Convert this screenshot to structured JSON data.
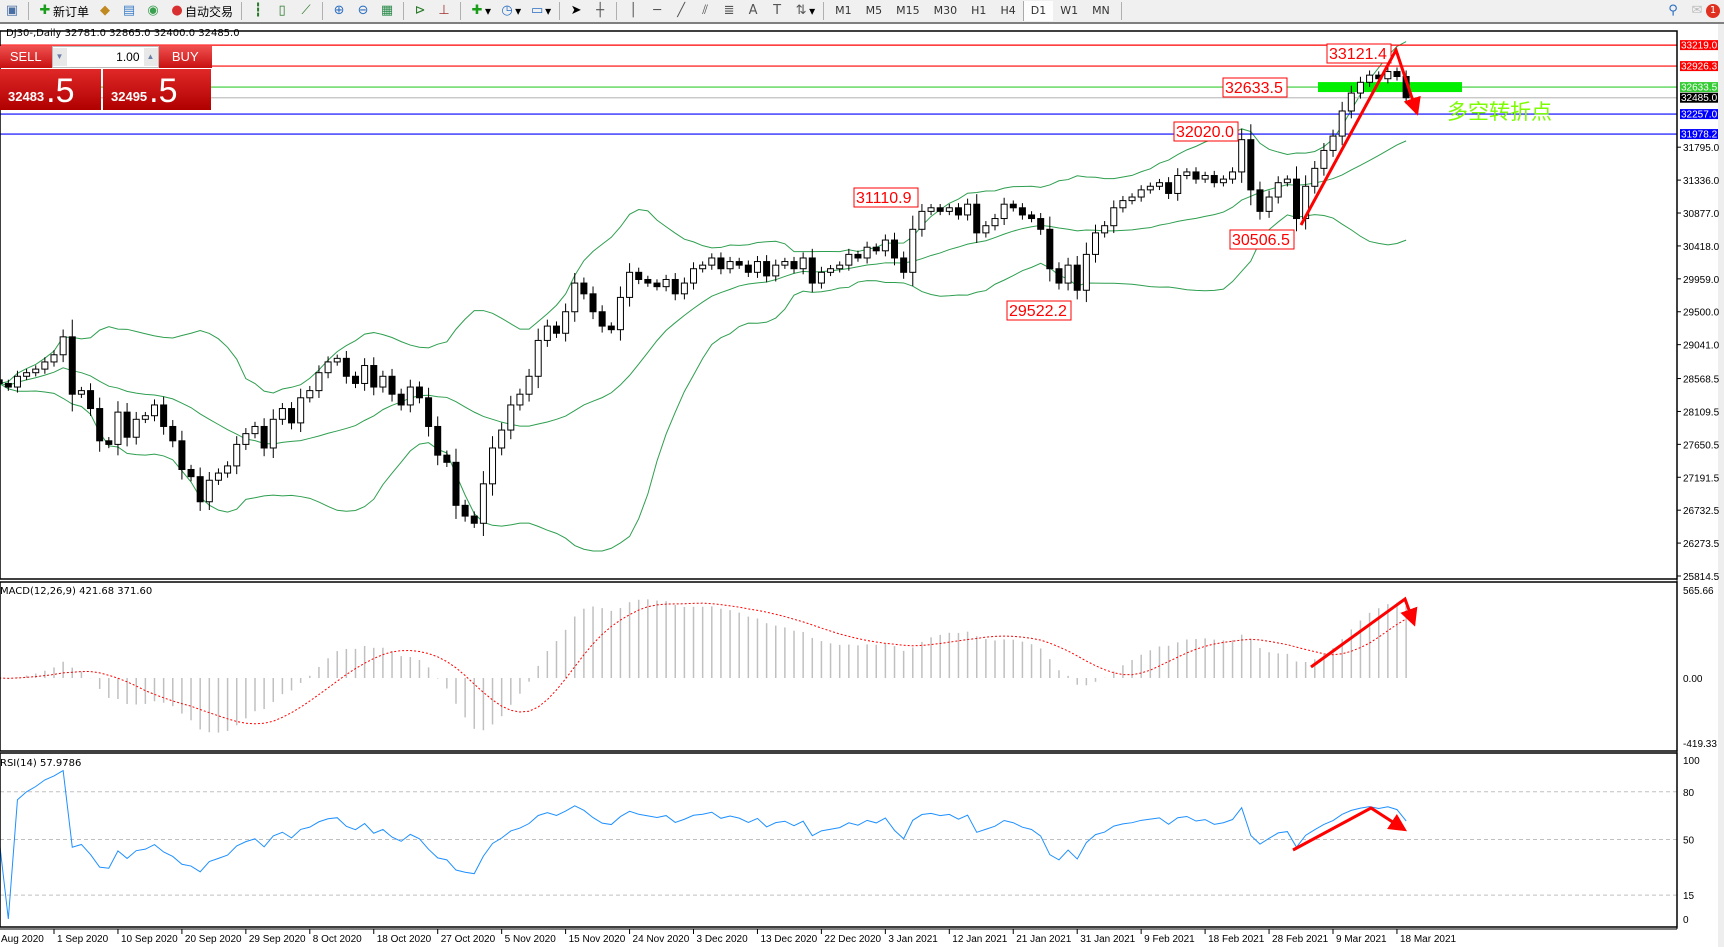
{
  "toolbar": {
    "new_order": "新订单",
    "auto_trading": "自动交易",
    "timeframes": [
      "M1",
      "M5",
      "M15",
      "M30",
      "H1",
      "H4",
      "D1",
      "W1",
      "MN"
    ],
    "active_timeframe": "D1",
    "notification_count": "1",
    "icons": [
      "profile-icon",
      "new-order-icon",
      "market-watch-icon",
      "history-icon",
      "signals-icon",
      "auto-trading-icon",
      "bar-chart-icon",
      "candle-chart-icon",
      "line-chart-icon",
      "zoom-in-icon",
      "zoom-out-icon",
      "tile-icon",
      "scroll-icon",
      "shift-icon",
      "indicators-icon",
      "periods-icon",
      "templates-icon",
      "cursor-icon",
      "crosshair-icon",
      "vertical-line-icon",
      "horizontal-line-icon",
      "trendline-icon",
      "channel-icon",
      "fibonacci-icon",
      "text-icon",
      "label-icon",
      "arrows-icon",
      "search-icon",
      "chat-icon"
    ]
  },
  "chart": {
    "title": "DJ30-,Daily  32781.0 32865.0 32400.0 32485.0"
  },
  "trade_panel": {
    "sell_label": "SELL",
    "buy_label": "BUY",
    "volume": "1.00",
    "sell_price_main": "32483",
    "sell_price_big": ".5",
    "buy_price_main": "32495",
    "buy_price_big": ".5"
  },
  "colors": {
    "bull_body": "#ffffff",
    "bear_body": "#000000",
    "bands": "#2e9e4f",
    "macd_hist": "#c0c0c0",
    "macd_signal": "#ff0000",
    "rsi": "#1e90ff",
    "annotation": "#ff0000",
    "zone": "#00ee00"
  },
  "chart_data": {
    "type": "candlestick",
    "symbol": "DJ30-",
    "period": "Daily",
    "last_bar": {
      "open": 32781.0,
      "high": 32865.0,
      "low": 32400.0,
      "close": 32485.0
    },
    "closes": [
      28500,
      28450,
      28600,
      28650,
      28700,
      28800,
      28900,
      29150,
      28350,
      28400,
      28150,
      27700,
      27650,
      28100,
      27750,
      28000,
      28050,
      28200,
      27900,
      27700,
      27300,
      27200,
      26850,
      27150,
      27250,
      27350,
      27650,
      27800,
      27900,
      27600,
      28000,
      28150,
      27950,
      28300,
      28400,
      28650,
      28800,
      28850,
      28600,
      28500,
      28750,
      28450,
      28600,
      28350,
      28200,
      28450,
      28300,
      27900,
      27500,
      27400,
      26800,
      26650,
      26550,
      27100,
      27600,
      27850,
      28200,
      28350,
      28600,
      29100,
      29300,
      29200,
      29500,
      29900,
      29750,
      29500,
      29300,
      29250,
      29700,
      30050,
      29950,
      29900,
      29850,
      29950,
      29750,
      29900,
      30100,
      30150,
      30250,
      30100,
      30200,
      30150,
      30050,
      30200,
      30000,
      30150,
      30200,
      30100,
      30250,
      29900,
      30050,
      30100,
      30150,
      30300,
      30250,
      30400,
      30350,
      30500,
      30250,
      30050,
      30650,
      30900,
      30950,
      30900,
      30950,
      30850,
      31000,
      30600,
      30700,
      30800,
      31000,
      30950,
      30850,
      30800,
      30650,
      30100,
      29900,
      30150,
      29800,
      30300,
      30600,
      30700,
      30950,
      31050,
      31100,
      31200,
      31250,
      31300,
      31150,
      31400,
      31450,
      31350,
      31400,
      31300,
      31350,
      31450,
      31900,
      31200,
      30900,
      31100,
      31300,
      31350,
      30800,
      31250,
      31500,
      31750,
      31950,
      32300,
      32550,
      32700,
      32800,
      32750,
      32850,
      32781,
      32485
    ],
    "overlays": [
      "Bollinger Bands"
    ],
    "price_axis": [
      "31795.0",
      "31336.0",
      "30877.0",
      "30418.0",
      "29959.0",
      "29500.0",
      "29041.0",
      "28568.5",
      "28109.5",
      "27650.5",
      "27191.5",
      "26732.5",
      "26273.5",
      "25814.5"
    ],
    "price_range": [
      25814.5,
      33300
    ],
    "horizontal_lines": [
      {
        "price": 33219.0,
        "label": "33219.0",
        "color": "#ff0000"
      },
      {
        "price": 32926.3,
        "label": "32926.3",
        "color": "#ff0000"
      },
      {
        "price": 32633.5,
        "label": "32633.5",
        "color": "#33cc33"
      },
      {
        "price": 32485.0,
        "label": "32485.0",
        "color": "#000000",
        "line": "#c0c0c0"
      },
      {
        "price": 32257.0,
        "label": "32257.0",
        "color": "#0000ff"
      },
      {
        "price": 31978.2,
        "label": "31978.2",
        "color": "#0000ff"
      }
    ],
    "price_labels": [
      {
        "text": "33121.4",
        "bar": 152
      },
      {
        "text": "32633.5",
        "bar": 138
      },
      {
        "text": "32020.0",
        "bar": 136
      },
      {
        "text": "31110.9",
        "bar": 101
      },
      {
        "text": "30506.5",
        "bar": 142
      },
      {
        "text": "29522.2",
        "bar": 117
      }
    ],
    "annotation_text": "多空转折点",
    "date_axis": [
      "Aug 2020",
      "1 Sep 2020",
      "10 Sep 2020",
      "20 Sep 2020",
      "29 Sep 2020",
      "8 Oct 2020",
      "18 Oct 2020",
      "27 Oct 2020",
      "5 Nov 2020",
      "15 Nov 2020",
      "24 Nov 2020",
      "3 Dec 2020",
      "13 Dec 2020",
      "22 Dec 2020",
      "3 Jan 2021",
      "12 Jan 2021",
      "21 Jan 2021",
      "31 Jan 2021",
      "9 Feb 2021",
      "18 Feb 2021",
      "28 Feb 2021",
      "9 Mar 2021",
      "18 Mar 2021"
    ],
    "macd": {
      "label": "MACD(12,26,9) 421.68 371.60",
      "axis": [
        "565.66",
        "0.00",
        "-419.33"
      ],
      "range": [
        -419.33,
        565.66
      ]
    },
    "rsi": {
      "label": "RSI(14) 57.9786",
      "axis": [
        "100",
        "80",
        "50",
        "15",
        "0"
      ],
      "levels": [
        80,
        50,
        15
      ],
      "range": [
        0,
        100
      ]
    }
  }
}
